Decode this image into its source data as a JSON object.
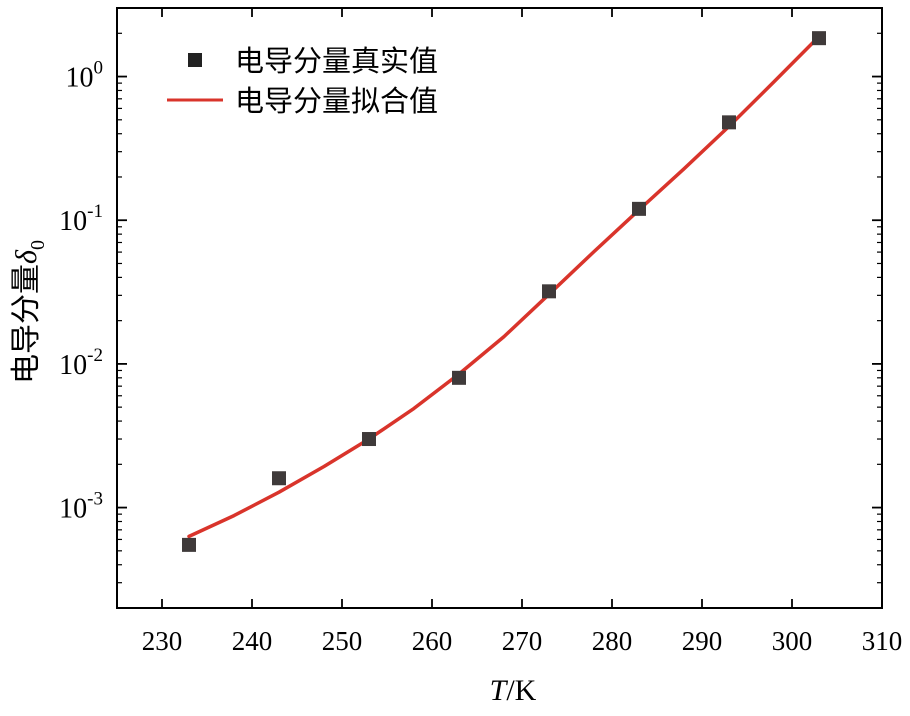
{
  "chart_data": {
    "type": "scatter",
    "title": "",
    "xlabel": {
      "main": "T",
      "suffix": "/K"
    },
    "ylabel": {
      "main": "电导分量",
      "symbol": "δ",
      "subscript": "0"
    },
    "xlim": [
      225,
      310
    ],
    "ylim": [
      0.0002,
      3.0
    ],
    "yscale": "log",
    "xticks": [
      230,
      240,
      250,
      260,
      270,
      280,
      290,
      300,
      310
    ],
    "yticks": [
      {
        "value": 0.001,
        "base": "10",
        "exp": "-3"
      },
      {
        "value": 0.01,
        "base": "10",
        "exp": "-2"
      },
      {
        "value": 0.1,
        "base": "10",
        "exp": "-1"
      },
      {
        "value": 1,
        "base": "10",
        "exp": "0"
      }
    ],
    "grid": false,
    "legend_position": "top-left",
    "series": [
      {
        "name": "电导分量真实值",
        "kind": "scatter",
        "marker": "square",
        "color": "#3f3a3a",
        "x": [
          233,
          243,
          253,
          263,
          273,
          283,
          293,
          303
        ],
        "y": [
          0.00055,
          0.0016,
          0.003,
          0.008,
          0.032,
          0.12,
          0.48,
          1.85
        ]
      },
      {
        "name": "电导分量拟合值",
        "kind": "line",
        "color": "#d9342b",
        "x": [
          233,
          238,
          243,
          248,
          253,
          258,
          263,
          268,
          273,
          278,
          283,
          288,
          293,
          298,
          303
        ],
        "y": [
          0.00063,
          0.00088,
          0.00128,
          0.00193,
          0.003,
          0.0049,
          0.0085,
          0.0155,
          0.0305,
          0.0605,
          0.118,
          0.228,
          0.45,
          0.92,
          1.9
        ]
      }
    ]
  }
}
